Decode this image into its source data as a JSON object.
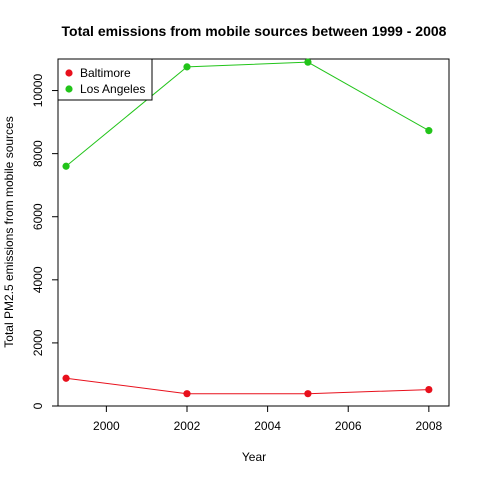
{
  "chart_data": {
    "type": "line",
    "title": "Total emissions from mobile sources between 1999 - 2008",
    "xlabel": "Year",
    "ylabel": "Total PM2.5 emissions from mobile sources",
    "x": [
      1999,
      2002,
      2005,
      2008
    ],
    "xlim": [
      1998.8,
      2008.5
    ],
    "ylim": [
      0,
      11000
    ],
    "xticks": [
      "2000",
      "2002",
      "2004",
      "2006",
      "2008"
    ],
    "yticks": [
      "0",
      "2000",
      "4000",
      "6000",
      "8000",
      "10000"
    ],
    "grid": false,
    "legend_position": "top-left",
    "series": [
      {
        "name": "Baltimore",
        "color": "#e8101c",
        "values": [
          880,
          390,
          390,
          520
        ]
      },
      {
        "name": "Los Angeles",
        "color": "#22c41a",
        "values": [
          7600,
          10750,
          10900,
          8730
        ]
      }
    ]
  }
}
